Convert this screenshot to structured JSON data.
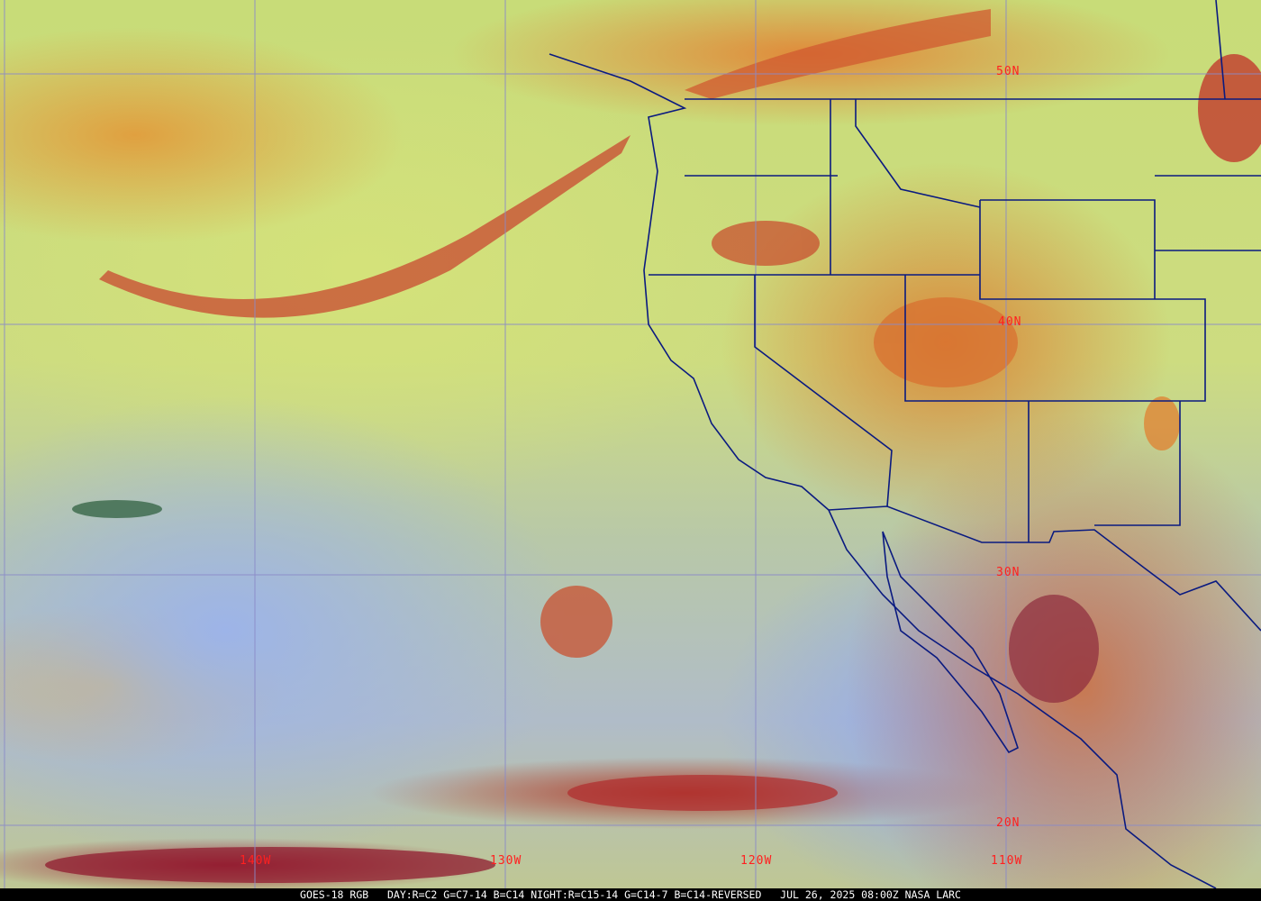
{
  "map": {
    "product": "GOES-18 RGB",
    "latitude_labels": [
      "50N",
      "40N",
      "30N",
      "20N"
    ],
    "longitude_labels": [
      "140W",
      "130W",
      "120W",
      "110W"
    ],
    "gridline_color": "#8a8ac8",
    "boundary_color": "#0a1a80",
    "label_color": "#ff2020"
  },
  "caption": {
    "product": "GOES-18 RGB",
    "recipe": "DAY:R=C2 G=C7-14 B=C14 NIGHT:R=C15-14 G=C14-7 B=C14-REVERSED",
    "datetime": "JUL 26, 2025 08:00Z",
    "credit": "NASA LARC"
  }
}
